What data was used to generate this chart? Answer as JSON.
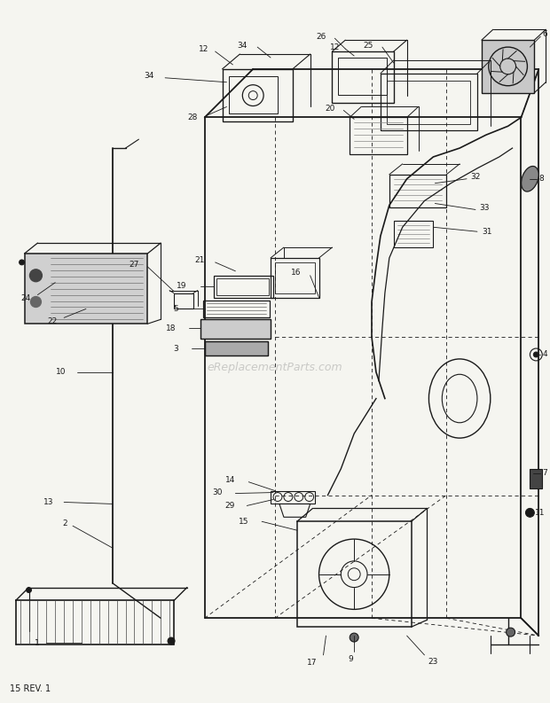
{
  "bg_color": "#f5f5f0",
  "line_color": "#1a1a1a",
  "fig_width": 6.2,
  "fig_height": 7.93,
  "dpi": 100,
  "watermark": "eReplacementParts.com",
  "footer_text": "15 REV. 1"
}
